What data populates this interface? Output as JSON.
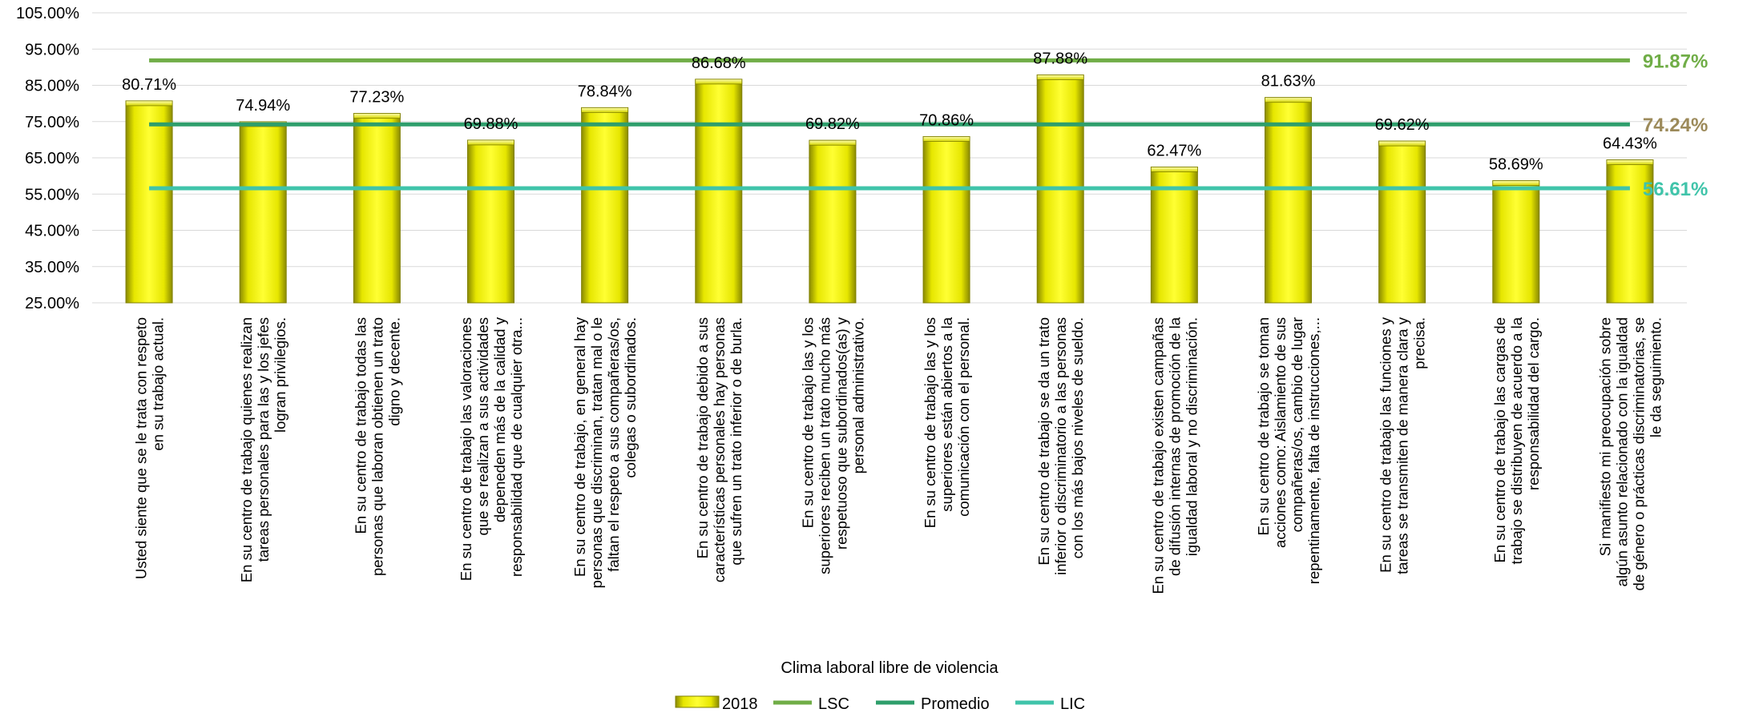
{
  "chart_data": {
    "type": "bar",
    "xlabel": "Clima laboral libre de violencia",
    "ylim": [
      0.25,
      1.05
    ],
    "yticks": [
      "25.00%",
      "35.00%",
      "45.00%",
      "55.00%",
      "65.00%",
      "75.00%",
      "85.00%",
      "95.00%",
      "105.00%"
    ],
    "grid": true,
    "legend_position": "bottom",
    "categories": [
      [
        "Usted siente que se le trata con respeto",
        "en su trabajo actual."
      ],
      [
        "En su centro de trabajo quienes realizan",
        "tareas personales para las y los jefes",
        "logran privilegios."
      ],
      [
        "En su centro de trabajo todas las",
        "personas que laboran obtienen un trato",
        "digno y decente."
      ],
      [
        "En su centro de trabajo las valoraciones",
        "que se realizan a sus actividades",
        "depeneden más de la calidad y",
        "responsabilidad que de cualquier otra..."
      ],
      [
        "En su centro de trabajo, en general hay",
        "personas que discriminan, tratan mal o le",
        "faltan el respeto a sus compañeras/os,",
        "colegas o subordinados."
      ],
      [
        "En su centro de trabajo debido a sus",
        "características personales hay personas",
        "que sufren un trato inferior o de burla."
      ],
      [
        "En su centro de trabajo las y los",
        "superiores reciben un trato mucho más",
        "respetuoso que subordinados(as) y",
        "personal administrativo."
      ],
      [
        "En su centro de trabajo las y los",
        "superiores están abiertos a la",
        "comunicación con el personal."
      ],
      [
        "En su centro de trabajo se da un trato",
        "inferior o discriminatorio a las personas",
        "con los más bajos niveles de sueldo."
      ],
      [
        "En su centro de trabajo existen campañas",
        "de difusión internas de promoción de la",
        "igualdad laboral y no discriminación."
      ],
      [
        "En su centro de trabajo se toman",
        "acciones como: Aislamiento de sus",
        "compañeras/os, cambio de lugar",
        "repentinamente, falta de instrucciones,..."
      ],
      [
        "En su centro de trabajo las funciones y",
        "tareas se transmiten de manera clara y",
        "precisa."
      ],
      [
        "En su centro de trabajo las cargas de",
        "trabajo se distribuyen de acuerdo a la",
        "responsabilidad del cargo."
      ],
      [
        "Si manifiesto mi preocupación sobre",
        "algún asunto relacionado con la igualdad",
        "de género o prácticas discriminatorias, se",
        "le da seguimiento."
      ]
    ],
    "series": [
      {
        "name": "2018",
        "type": "bar",
        "color": "#ffff00",
        "values": [
          0.8071,
          0.7494,
          0.7723,
          0.6988,
          0.7884,
          0.8668,
          0.6982,
          0.7086,
          0.8788,
          0.6247,
          0.8163,
          0.6962,
          0.5869,
          0.6443
        ],
        "labels": [
          "80.71%",
          "74.94%",
          "77.23%",
          "69.88%",
          "78.84%",
          "86.68%",
          "69.82%",
          "70.86%",
          "87.88%",
          "62.47%",
          "81.63%",
          "69.62%",
          "58.69%",
          "64.43%"
        ]
      },
      {
        "name": "LSC",
        "type": "line",
        "color": "#70ad47",
        "value": 0.9187,
        "label": "91.87%",
        "label_color": "#70ad47"
      },
      {
        "name": "Promedio",
        "type": "line",
        "color": "#2e9e6b",
        "value": 0.7424,
        "label": "74.24%",
        "label_color": "#9c8a5a"
      },
      {
        "name": "LIC",
        "type": "line",
        "color": "#40c4aa",
        "value": 0.5661,
        "label": "56.61%",
        "label_color": "#40c4aa"
      }
    ]
  }
}
